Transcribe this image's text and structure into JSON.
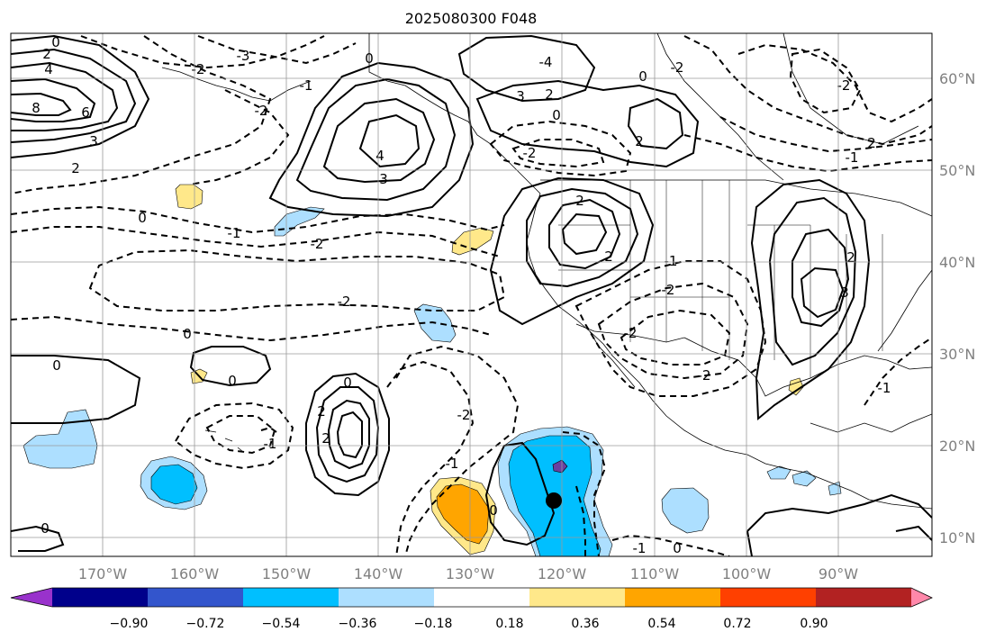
{
  "title": "2025080300 F048",
  "lat_ticks": [
    "60°N",
    "50°N",
    "40°N",
    "30°N",
    "20°N",
    "10°N"
  ],
  "lon_ticks": [
    "170°W",
    "160°W",
    "150°W",
    "140°W",
    "130°W",
    "120°W",
    "110°W",
    "100°W",
    "90°W"
  ],
  "colorbar": {
    "colors": [
      "#9932CC",
      "#00008B",
      "#3355CC",
      "#00BFFF",
      "#ADDFFF",
      "#FFFFFF",
      "#FFE88A",
      "#FFA500",
      "#FF4000",
      "#B22222",
      "#FF88AA"
    ],
    "labels": [
      "−0.90",
      "−0.72",
      "−0.54",
      "−0.36",
      "−0.18",
      "0.18",
      "0.36",
      "0.54",
      "0.72",
      "0.90"
    ]
  },
  "contour_labels": [
    "0",
    "2",
    "4",
    "8",
    "6",
    "3",
    "2",
    "-3",
    "-2",
    "0",
    "4",
    "3",
    "2",
    "3",
    "-1",
    "-2",
    "0",
    "-2",
    "0",
    "2",
    "-4",
    "-2",
    "-1",
    "2",
    "-2",
    "0",
    "-1",
    "-2",
    "-2",
    "-2",
    "2",
    "2",
    "3",
    "-2",
    "0",
    "0",
    "0",
    "0",
    "-1",
    "2",
    "2",
    "-2",
    "-1",
    "-1",
    "-1",
    "0",
    "0",
    "0",
    "-1",
    "2",
    "-2"
  ],
  "marker": {
    "label": "storm-center",
    "lon": -121.0,
    "lat": 14.0
  }
}
